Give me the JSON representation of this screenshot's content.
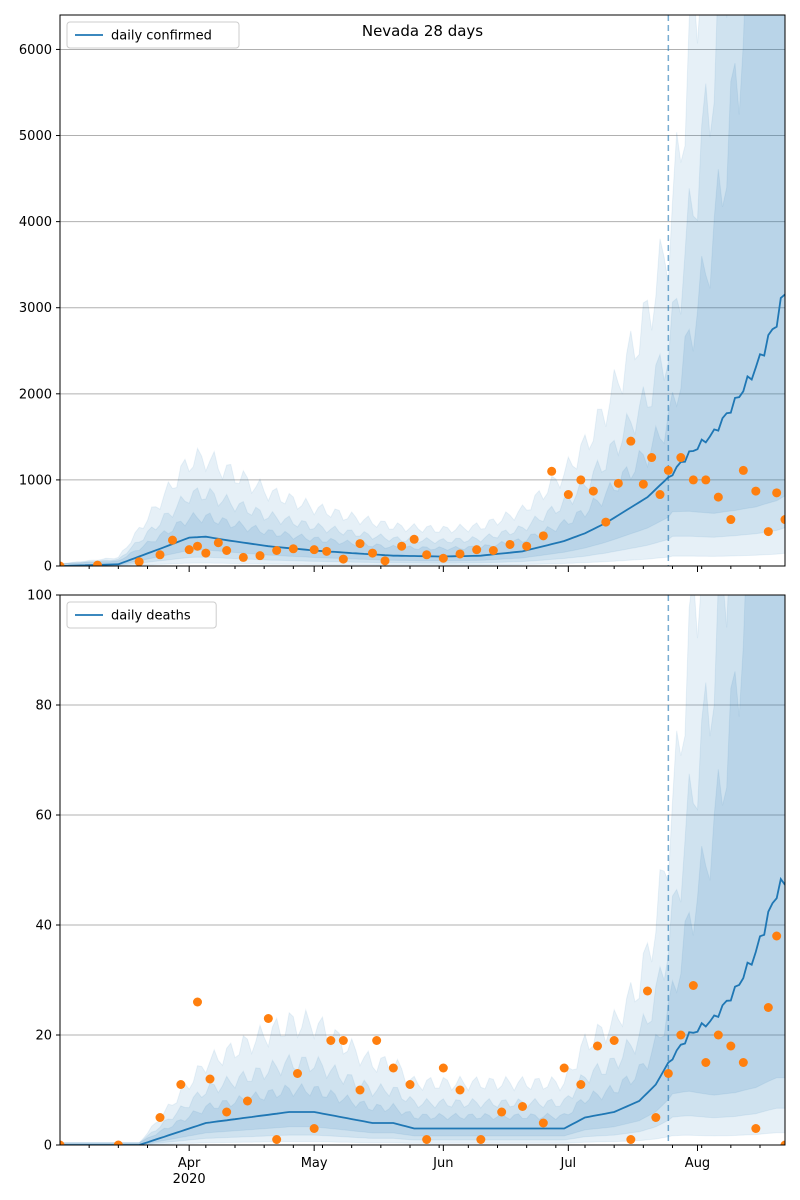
{
  "chart_data": [
    {
      "type": "line",
      "title": "Nevada 28 days",
      "xlabel": "",
      "ylabel": "",
      "legend": {
        "placement": "top-left",
        "entries": [
          "daily confirmed"
        ]
      },
      "grid": "horizontal",
      "xlim": [
        "2020-03-01",
        "2020-08-22"
      ],
      "ylim": [
        0,
        6400
      ],
      "yticks": [
        0,
        1000,
        2000,
        3000,
        4000,
        5000,
        6000
      ],
      "forecast_start": "2020-07-25",
      "colors": {
        "line": "#1f77b4",
        "points": "#ff7f0e",
        "band": "#1f77b4"
      },
      "series": [
        {
          "name": "daily confirmed",
          "x": [
            "2020-03-01",
            "2020-03-15",
            "2020-03-25",
            "2020-04-01",
            "2020-04-05",
            "2020-04-10",
            "2020-04-20",
            "2020-05-01",
            "2020-05-10",
            "2020-05-20",
            "2020-06-01",
            "2020-06-10",
            "2020-06-20",
            "2020-06-30",
            "2020-07-05",
            "2020-07-10",
            "2020-07-15",
            "2020-07-20",
            "2020-07-25",
            "2020-07-30",
            "2020-08-05",
            "2020-08-10",
            "2020-08-15",
            "2020-08-20",
            "2020-08-22"
          ],
          "values": [
            0,
            20,
            200,
            330,
            340,
            300,
            230,
            180,
            150,
            120,
            110,
            120,
            170,
            290,
            380,
            500,
            650,
            800,
            1030,
            1300,
            1550,
            1900,
            2300,
            2850,
            3200
          ]
        },
        {
          "name": "observed",
          "x": [
            "2020-03-01",
            "2020-03-10",
            "2020-03-20",
            "2020-03-25",
            "2020-03-28",
            "2020-04-01",
            "2020-04-03",
            "2020-04-05",
            "2020-04-08",
            "2020-04-10",
            "2020-04-14",
            "2020-04-18",
            "2020-04-22",
            "2020-04-26",
            "2020-05-01",
            "2020-05-04",
            "2020-05-08",
            "2020-05-12",
            "2020-05-15",
            "2020-05-18",
            "2020-05-22",
            "2020-05-25",
            "2020-05-28",
            "2020-06-01",
            "2020-06-05",
            "2020-06-09",
            "2020-06-13",
            "2020-06-17",
            "2020-06-21",
            "2020-06-25",
            "2020-06-27",
            "2020-07-01",
            "2020-07-04",
            "2020-07-07",
            "2020-07-10",
            "2020-07-13",
            "2020-07-16",
            "2020-07-19",
            "2020-07-21",
            "2020-07-23",
            "2020-07-25",
            "2020-07-28",
            "2020-07-31",
            "2020-08-03",
            "2020-08-06",
            "2020-08-09",
            "2020-08-12",
            "2020-08-15",
            "2020-08-18",
            "2020-08-20",
            "2020-08-22"
          ],
          "values": [
            0,
            10,
            50,
            130,
            300,
            190,
            230,
            150,
            270,
            180,
            100,
            120,
            180,
            200,
            190,
            170,
            80,
            260,
            150,
            60,
            230,
            310,
            130,
            90,
            140,
            190,
            180,
            250,
            230,
            350,
            1100,
            830,
            1000,
            870,
            510,
            960,
            1450,
            950,
            1260,
            830,
            1110,
            1260,
            1000,
            1000,
            800,
            540,
            1110,
            870,
            400,
            850,
            540
          ]
        }
      ]
    },
    {
      "type": "line",
      "title": "",
      "xlabel": "",
      "ylabel": "",
      "legend": {
        "placement": "top-left",
        "entries": [
          "daily deaths"
        ]
      },
      "grid": "horizontal",
      "xlim": [
        "2020-03-01",
        "2020-08-22"
      ],
      "ylim": [
        0,
        100
      ],
      "yticks": [
        0,
        20,
        40,
        60,
        80,
        100
      ],
      "xticks": [
        "Apr",
        "May",
        "Jun",
        "Jul",
        "Aug"
      ],
      "xticks_dates": [
        "2020-04-01",
        "2020-05-01",
        "2020-06-01",
        "2020-07-01",
        "2020-08-01"
      ],
      "x_year_label": "2020",
      "forecast_start": "2020-07-25",
      "colors": {
        "line": "#1f77b4",
        "points": "#ff7f0e",
        "band": "#1f77b4"
      },
      "series": [
        {
          "name": "daily deaths",
          "x": [
            "2020-03-01",
            "2020-03-20",
            "2020-03-28",
            "2020-04-05",
            "2020-04-15",
            "2020-04-25",
            "2020-05-01",
            "2020-05-08",
            "2020-05-15",
            "2020-05-20",
            "2020-05-25",
            "2020-06-01",
            "2020-06-10",
            "2020-06-20",
            "2020-06-30",
            "2020-07-05",
            "2020-07-12",
            "2020-07-18",
            "2020-07-22",
            "2020-07-25",
            "2020-07-30",
            "2020-08-05",
            "2020-08-10",
            "2020-08-15",
            "2020-08-20",
            "2020-08-22"
          ],
          "values": [
            0,
            0,
            2,
            4,
            5,
            6,
            6,
            5,
            4,
            4,
            3,
            3,
            3,
            3,
            3,
            5,
            6,
            8,
            11,
            15,
            20,
            23,
            28,
            35,
            46,
            48
          ]
        },
        {
          "name": "observed",
          "x": [
            "2020-03-01",
            "2020-03-15",
            "2020-03-25",
            "2020-03-30",
            "2020-04-03",
            "2020-04-06",
            "2020-04-10",
            "2020-04-15",
            "2020-04-20",
            "2020-04-22",
            "2020-04-27",
            "2020-05-01",
            "2020-05-05",
            "2020-05-08",
            "2020-05-12",
            "2020-05-16",
            "2020-05-20",
            "2020-05-24",
            "2020-05-28",
            "2020-06-01",
            "2020-06-05",
            "2020-06-10",
            "2020-06-15",
            "2020-06-20",
            "2020-06-25",
            "2020-06-30",
            "2020-07-04",
            "2020-07-08",
            "2020-07-12",
            "2020-07-16",
            "2020-07-20",
            "2020-07-22",
            "2020-07-25",
            "2020-07-28",
            "2020-07-31",
            "2020-08-03",
            "2020-08-06",
            "2020-08-09",
            "2020-08-12",
            "2020-08-15",
            "2020-08-18",
            "2020-08-20",
            "2020-08-22"
          ],
          "values": [
            0,
            0,
            5,
            11,
            26,
            12,
            6,
            8,
            23,
            1,
            13,
            3,
            19,
            19,
            10,
            19,
            14,
            11,
            1,
            14,
            10,
            1,
            6,
            7,
            4,
            14,
            11,
            18,
            19,
            1,
            28,
            5,
            13,
            20,
            29,
            15,
            20,
            18,
            15,
            3,
            25,
            38,
            0
          ]
        }
      ]
    }
  ]
}
